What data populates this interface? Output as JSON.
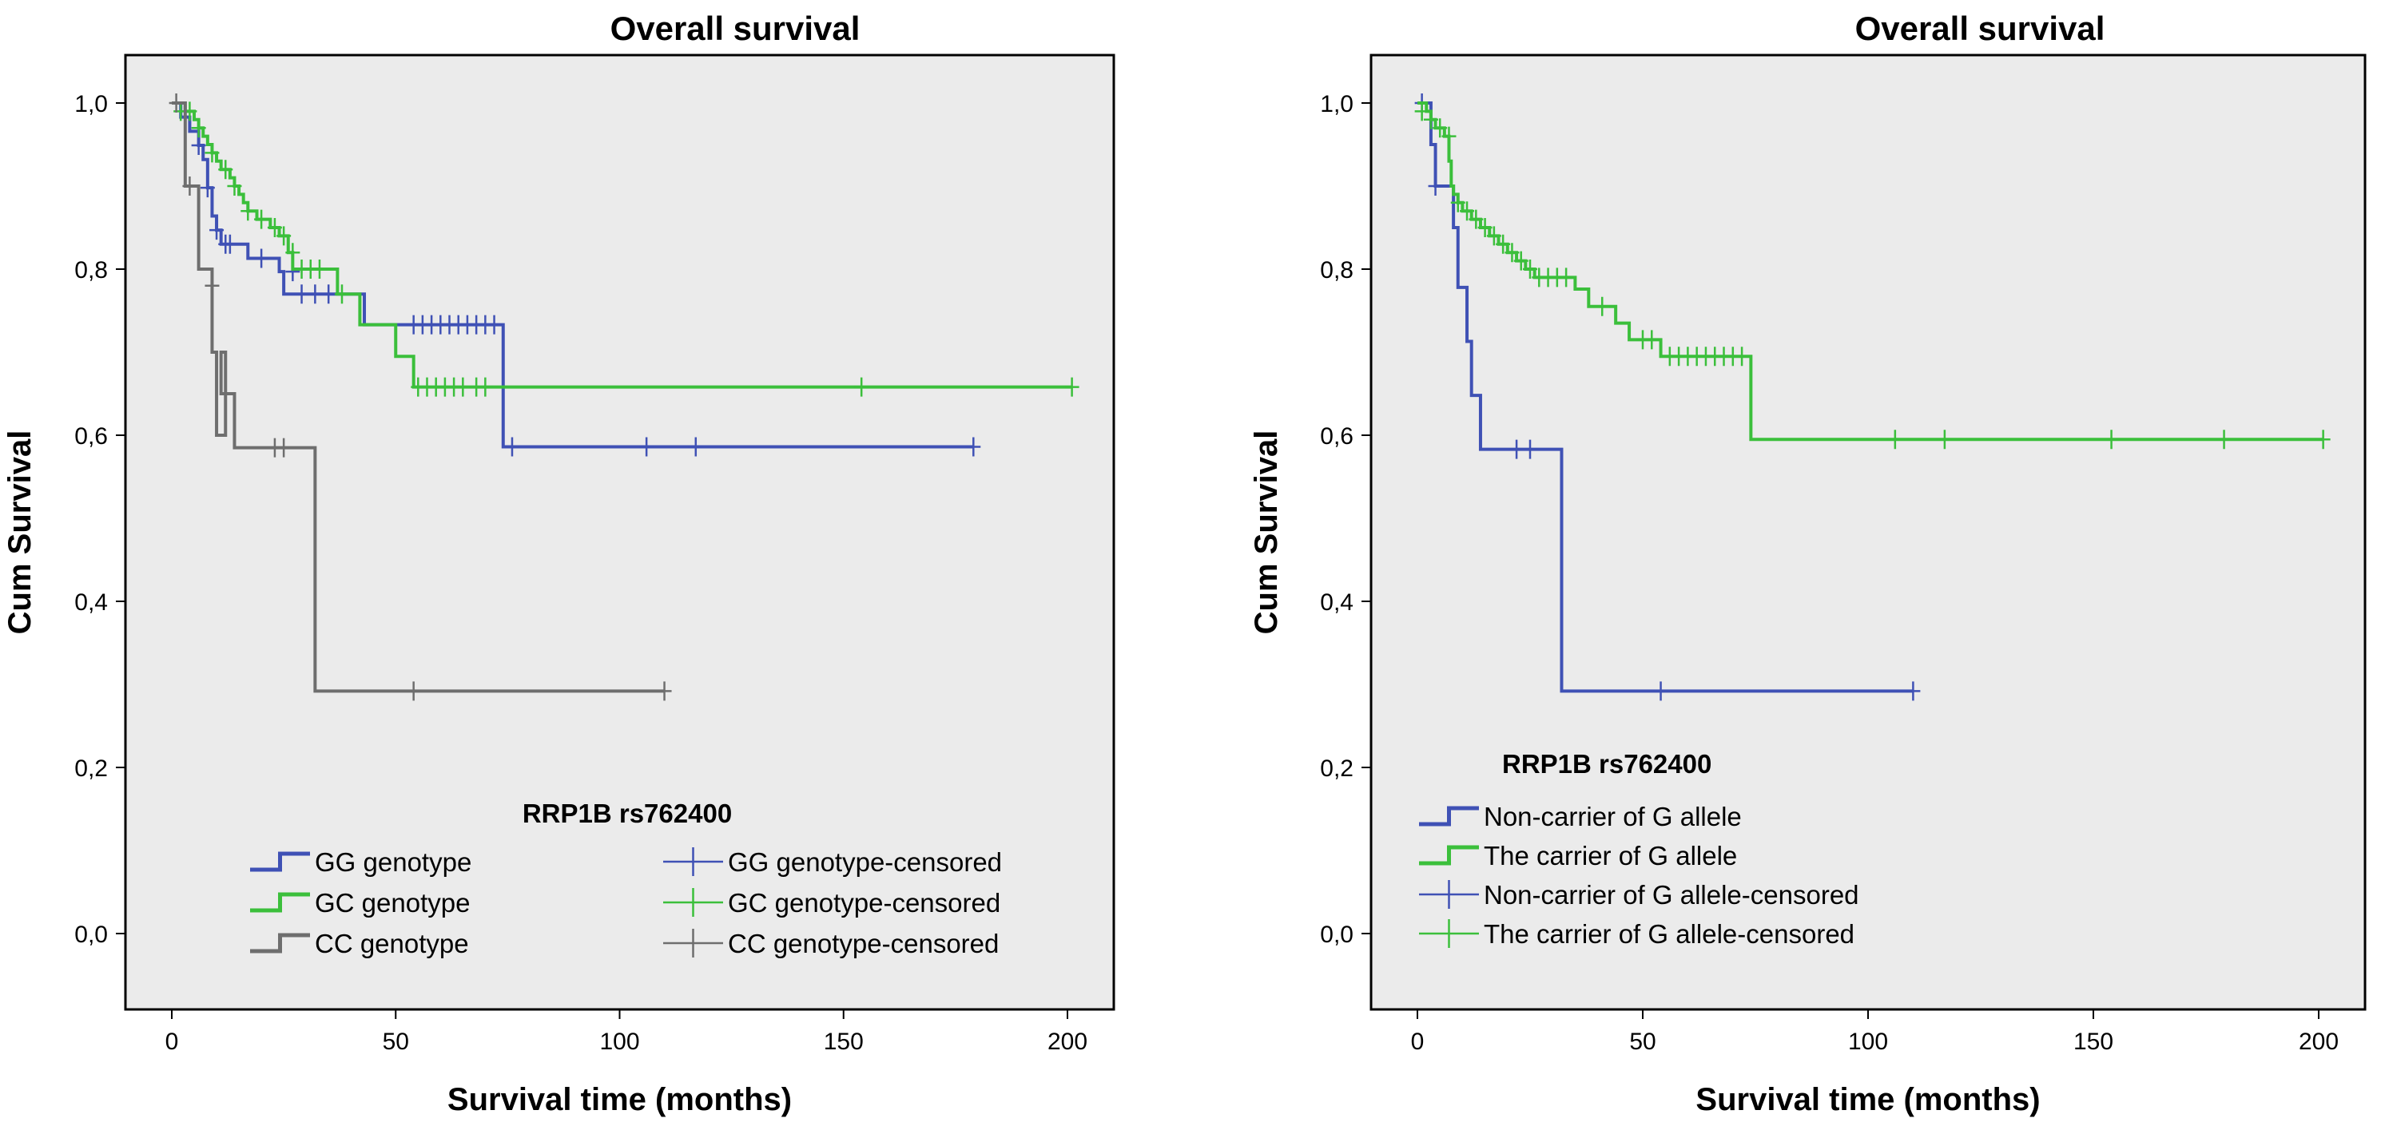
{
  "chart_data": [
    {
      "type": "line",
      "title": "Overall survival",
      "xlabel": "Survival time (months)",
      "ylabel": "Cum Survival",
      "xlim": [
        0,
        200
      ],
      "ylim": [
        0,
        1
      ],
      "x_ticks": [
        0,
        50,
        100,
        150,
        200
      ],
      "x_tick_labels": [
        "0",
        "50",
        "100",
        "150",
        "200"
      ],
      "y_ticks": [
        0,
        0.2,
        0.4,
        0.6,
        0.8,
        1.0
      ],
      "y_tick_labels": [
        "0,0",
        "0,2",
        "0,4",
        "0,6",
        "0,8",
        "1,0"
      ],
      "grid": false,
      "background": "#ebebeb",
      "legend": {
        "title": "RRP1B rs762400",
        "placement": "bottom-center",
        "columns": 2,
        "entries": [
          {
            "label": "GG genotype",
            "series": 0,
            "kind": "line"
          },
          {
            "label": "GG genotype-censored",
            "series": 0,
            "kind": "censor"
          },
          {
            "label": "GC genotype",
            "series": 1,
            "kind": "line"
          },
          {
            "label": "GC genotype-censored",
            "series": 1,
            "kind": "censor"
          },
          {
            "label": "CC genotype",
            "series": 2,
            "kind": "line"
          },
          {
            "label": "CC genotype-censored",
            "series": 2,
            "kind": "censor"
          }
        ]
      },
      "series": [
        {
          "name": "GG genotype",
          "color": "#3f51b5",
          "steps": [
            [
              0,
              1.0
            ],
            [
              2,
              0.983
            ],
            [
              4,
              0.966
            ],
            [
              6,
              0.949
            ],
            [
              7,
              0.932
            ],
            [
              8,
              0.898
            ],
            [
              9,
              0.864
            ],
            [
              10,
              0.847
            ],
            [
              11,
              0.83
            ],
            [
              17,
              0.813
            ],
            [
              24,
              0.797
            ],
            [
              25,
              0.77
            ],
            [
              43,
              0.733
            ],
            [
              74,
              0.586
            ]
          ],
          "end": 179,
          "censored": [
            [
              6,
              0.949
            ],
            [
              8,
              0.898
            ],
            [
              10,
              0.847
            ],
            [
              12,
              0.83
            ],
            [
              13,
              0.83
            ],
            [
              20,
              0.813
            ],
            [
              27,
              0.797
            ],
            [
              29,
              0.77
            ],
            [
              32,
              0.77
            ],
            [
              35,
              0.77
            ],
            [
              54,
              0.733
            ],
            [
              56,
              0.733
            ],
            [
              58,
              0.733
            ],
            [
              60,
              0.733
            ],
            [
              62,
              0.733
            ],
            [
              64,
              0.733
            ],
            [
              66,
              0.733
            ],
            [
              68,
              0.733
            ],
            [
              70,
              0.733
            ],
            [
              72,
              0.733
            ],
            [
              76,
              0.586
            ],
            [
              106,
              0.586
            ],
            [
              117,
              0.586
            ],
            [
              179,
              0.586
            ]
          ]
        },
        {
          "name": "GC genotype",
          "color": "#3bbf3b",
          "steps": [
            [
              0,
              1.0
            ],
            [
              3,
              0.99
            ],
            [
              5,
              0.98
            ],
            [
              6,
              0.97
            ],
            [
              7,
              0.96
            ],
            [
              8,
              0.95
            ],
            [
              9,
              0.94
            ],
            [
              10,
              0.93
            ],
            [
              11,
              0.92
            ],
            [
              13,
              0.91
            ],
            [
              14,
              0.9
            ],
            [
              15,
              0.89
            ],
            [
              16,
              0.88
            ],
            [
              17,
              0.87
            ],
            [
              19,
              0.86
            ],
            [
              22,
              0.85
            ],
            [
              24,
              0.84
            ],
            [
              26,
              0.82
            ],
            [
              27,
              0.8
            ],
            [
              37,
              0.77
            ],
            [
              42,
              0.733
            ],
            [
              50,
              0.695
            ],
            [
              54,
              0.658
            ]
          ],
          "end": 201,
          "censored": [
            [
              2,
              0.99
            ],
            [
              4,
              0.99
            ],
            [
              6,
              0.97
            ],
            [
              9,
              0.94
            ],
            [
              12,
              0.92
            ],
            [
              14,
              0.9
            ],
            [
              17,
              0.87
            ],
            [
              20,
              0.86
            ],
            [
              23,
              0.85
            ],
            [
              25,
              0.84
            ],
            [
              27,
              0.82
            ],
            [
              29,
              0.8
            ],
            [
              31,
              0.8
            ],
            [
              33,
              0.8
            ],
            [
              38,
              0.77
            ],
            [
              55,
              0.658
            ],
            [
              57,
              0.658
            ],
            [
              59,
              0.658
            ],
            [
              61,
              0.658
            ],
            [
              63,
              0.658
            ],
            [
              65,
              0.658
            ],
            [
              68,
              0.658
            ],
            [
              70,
              0.658
            ],
            [
              154,
              0.658
            ],
            [
              201,
              0.658
            ]
          ]
        },
        {
          "name": "CC genotype",
          "color": "#6e6e6e",
          "steps": [
            [
              0,
              1.0
            ],
            [
              3,
              0.9
            ],
            [
              6,
              0.8
            ],
            [
              9,
              0.7
            ],
            [
              10,
              0.6
            ],
            [
              12,
              0.7
            ],
            [
              11,
              0.65
            ],
            [
              14,
              0.585
            ],
            [
              32,
              0.292
            ]
          ],
          "end": 110,
          "censored": [
            [
              1,
              1.0
            ],
            [
              4,
              0.9
            ],
            [
              9,
              0.78
            ],
            [
              23,
              0.585
            ],
            [
              25,
              0.585
            ],
            [
              54,
              0.292
            ],
            [
              110,
              0.292
            ]
          ]
        }
      ]
    },
    {
      "type": "line",
      "title": "Overall survival",
      "xlabel": "Survival time (months)",
      "ylabel": "Cum Survival",
      "xlim": [
        0,
        200
      ],
      "ylim": [
        0,
        1
      ],
      "x_ticks": [
        0,
        50,
        100,
        150,
        200
      ],
      "x_tick_labels": [
        "0",
        "50",
        "100",
        "150",
        "200"
      ],
      "y_ticks": [
        0,
        0.2,
        0.4,
        0.6,
        0.8,
        1.0
      ],
      "y_tick_labels": [
        "0,0",
        "0,2",
        "0,4",
        "0,6",
        "0,8",
        "1,0"
      ],
      "grid": false,
      "background": "#ebebeb",
      "legend": {
        "title": "RRP1B rs762400",
        "placement": "bottom-left",
        "columns": 1,
        "entries": [
          {
            "label": "Non-carrier of G allele",
            "series": 0,
            "kind": "line"
          },
          {
            "label": "The carrier of G allele",
            "series": 1,
            "kind": "line"
          },
          {
            "label": "Non-carrier of G allele-censored",
            "series": 0,
            "kind": "censor"
          },
          {
            "label": "The carrier of G allele-censored",
            "series": 1,
            "kind": "censor"
          }
        ]
      },
      "series": [
        {
          "name": "Non-carrier of G allele",
          "color": "#3f51b5",
          "steps": [
            [
              0,
              1.0
            ],
            [
              3,
              0.95
            ],
            [
              4,
              0.9
            ],
            [
              8,
              0.85
            ],
            [
              9,
              0.778
            ],
            [
              11,
              0.713
            ],
            [
              12,
              0.648
            ],
            [
              14,
              0.583
            ],
            [
              32,
              0.292
            ]
          ],
          "end": 110,
          "censored": [
            [
              1,
              1.0
            ],
            [
              4,
              0.9
            ],
            [
              22,
              0.583
            ],
            [
              25,
              0.583
            ],
            [
              54,
              0.292
            ],
            [
              110,
              0.292
            ]
          ]
        },
        {
          "name": "The carrier of G allele",
          "color": "#3bbf3b",
          "steps": [
            [
              0,
              1.0
            ],
            [
              2,
              0.99
            ],
            [
              3,
              0.98
            ],
            [
              4,
              0.97
            ],
            [
              6,
              0.96
            ],
            [
              7,
              0.93
            ],
            [
              7.5,
              0.9
            ],
            [
              8,
              0.89
            ],
            [
              9,
              0.88
            ],
            [
              10,
              0.87
            ],
            [
              12,
              0.86
            ],
            [
              14,
              0.85
            ],
            [
              16,
              0.84
            ],
            [
              18,
              0.83
            ],
            [
              20,
              0.82
            ],
            [
              22,
              0.81
            ],
            [
              24,
              0.8
            ],
            [
              26,
              0.79
            ],
            [
              35,
              0.776
            ],
            [
              38,
              0.755
            ],
            [
              44,
              0.735
            ],
            [
              47,
              0.715
            ],
            [
              54,
              0.695
            ],
            [
              74,
              0.595
            ]
          ],
          "end": 201,
          "censored": [
            [
              1,
              0.99
            ],
            [
              3,
              0.98
            ],
            [
              5,
              0.97
            ],
            [
              7,
              0.96
            ],
            [
              9,
              0.88
            ],
            [
              11,
              0.87
            ],
            [
              13,
              0.86
            ],
            [
              15,
              0.85
            ],
            [
              17,
              0.84
            ],
            [
              19,
              0.83
            ],
            [
              21,
              0.82
            ],
            [
              23,
              0.81
            ],
            [
              25,
              0.8
            ],
            [
              27,
              0.79
            ],
            [
              29,
              0.79
            ],
            [
              31,
              0.79
            ],
            [
              33,
              0.79
            ],
            [
              41,
              0.755
            ],
            [
              50,
              0.715
            ],
            [
              52,
              0.715
            ],
            [
              56,
              0.695
            ],
            [
              58,
              0.695
            ],
            [
              60,
              0.695
            ],
            [
              62,
              0.695
            ],
            [
              64,
              0.695
            ],
            [
              66,
              0.695
            ],
            [
              68,
              0.695
            ],
            [
              70,
              0.695
            ],
            [
              72,
              0.695
            ],
            [
              106,
              0.595
            ],
            [
              117,
              0.595
            ],
            [
              154,
              0.595
            ],
            [
              179,
              0.595
            ],
            [
              201,
              0.595
            ]
          ]
        }
      ]
    }
  ]
}
